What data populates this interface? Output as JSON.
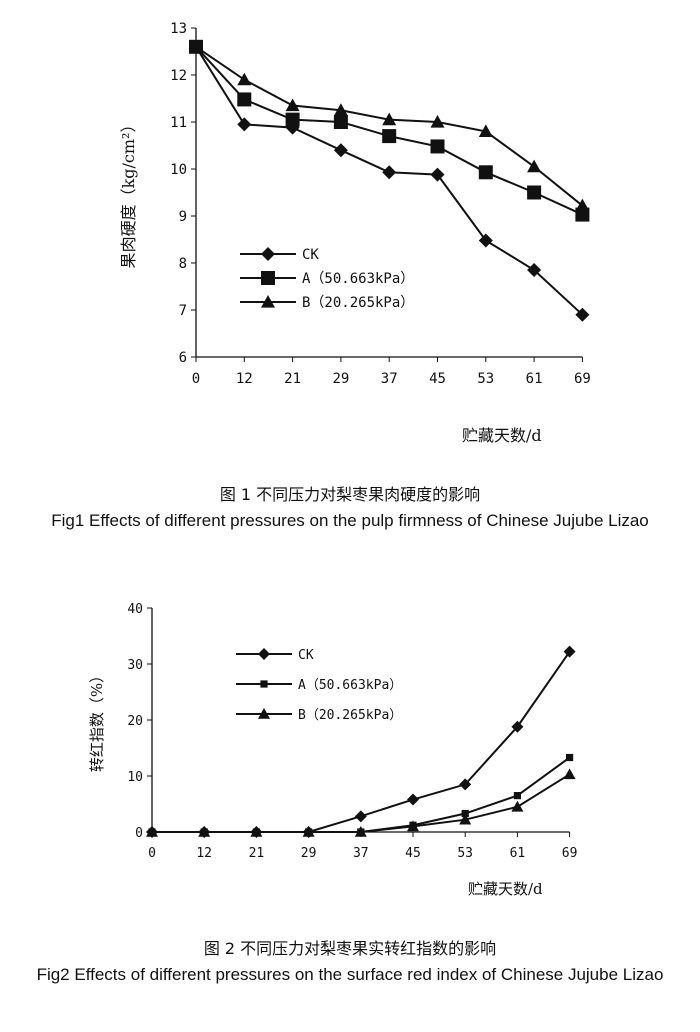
{
  "chart_data": [
    {
      "type": "line",
      "categories": [
        "0",
        "12",
        "21",
        "29",
        "37",
        "45",
        "53",
        "61",
        "69"
      ],
      "ylabel": "果肉硬度（kg/cm²）",
      "xlabel": "贮藏天数/d",
      "ylim": [
        6,
        13
      ],
      "yticks": [
        "6",
        "7",
        "8",
        "9",
        "10",
        "11",
        "12",
        "13"
      ],
      "grid": false,
      "legend_position": "left-lower",
      "series": [
        {
          "name": "CK",
          "marker": "diamond",
          "values": [
            12.6,
            10.95,
            10.88,
            10.4,
            9.93,
            9.88,
            8.48,
            7.85,
            6.9
          ]
        },
        {
          "name": "A（50.663kPa）",
          "marker": "square",
          "values": [
            12.6,
            11.48,
            11.05,
            11.0,
            10.7,
            10.48,
            9.93,
            9.5,
            9.03
          ]
        },
        {
          "name": "B（20.265kPa）",
          "marker": "triangle",
          "values": [
            12.6,
            11.9,
            11.35,
            11.25,
            11.05,
            11.0,
            10.8,
            10.05,
            9.22
          ]
        }
      ]
    },
    {
      "type": "line",
      "categories": [
        "0",
        "12",
        "21",
        "29",
        "37",
        "45",
        "53",
        "61",
        "69"
      ],
      "ylabel": "转红指数（%）",
      "xlabel": "贮藏天数/d",
      "ylim": [
        0,
        40
      ],
      "yticks": [
        "0",
        "10",
        "20",
        "30",
        "40"
      ],
      "grid": false,
      "legend_position": "top-center",
      "series": [
        {
          "name": "CK",
          "marker": "diamond",
          "values": [
            0,
            0,
            0,
            0,
            2.8,
            5.8,
            8.5,
            18.8,
            32.2
          ]
        },
        {
          "name": "A（50.663kPa）",
          "marker": "cross",
          "values": [
            0,
            0,
            0,
            0,
            0,
            1.2,
            3.3,
            6.5,
            13.3
          ]
        },
        {
          "name": "B（20.265kPa）",
          "marker": "triangle",
          "values": [
            0,
            0,
            0,
            0,
            0,
            1.0,
            2.2,
            4.5,
            10.3
          ]
        }
      ]
    }
  ],
  "captions": {
    "fig1_cn": "图 1  不同压力对梨枣果肉硬度的影响",
    "fig1_en": "Fig1 Effects of different pressures on the pulp firmness of Chinese Jujube Lizao",
    "fig2_cn": "图 2  不同压力对梨枣果实转红指数的影响",
    "fig2_en": "Fig2 Effects of different pressures on the surface red index of Chinese Jujube Lizao"
  }
}
